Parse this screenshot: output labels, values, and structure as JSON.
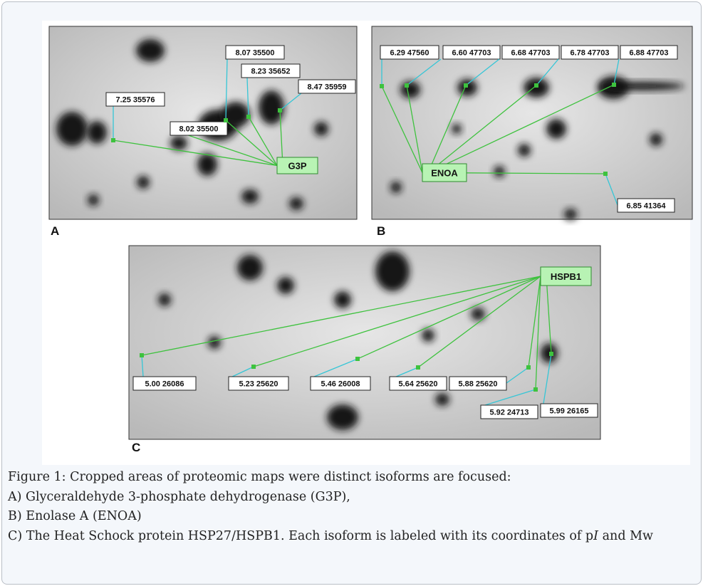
{
  "panels": [
    {
      "letter": "A",
      "tag": "G3P",
      "spots": [
        "7.25 35576",
        "8.02 35500",
        "8.07 35500",
        "8.23 35652",
        "8.47 35959"
      ]
    },
    {
      "letter": "B",
      "tag": "ENOA",
      "spots": [
        "6.29 47560",
        "6.60 47703",
        "6.68 47703",
        "6.78 47703",
        "6.88 47703",
        "6.85 41364"
      ]
    },
    {
      "letter": "C",
      "tag": "HSPB1",
      "spots": [
        "5.00 26086",
        "5.23 25620",
        "5.46 26008",
        "5.64 25620",
        "5.88 25620",
        "5.92 24713",
        "5.99 26165"
      ]
    }
  ],
  "caption": {
    "lines": [
      "Figure 1: Cropped areas of proteomic maps were distinct isoforms are focused:",
      "A) Glyceraldehyde 3-phosphate dehydrogenase (G3P),",
      "B) Enolase A (ENOA)"
    ],
    "last": [
      "C) The Heat Schock protein HSP27/HSPB1. Each isoform is labeled with its coordinates of p",
      "I",
      " and Mw"
    ]
  }
}
